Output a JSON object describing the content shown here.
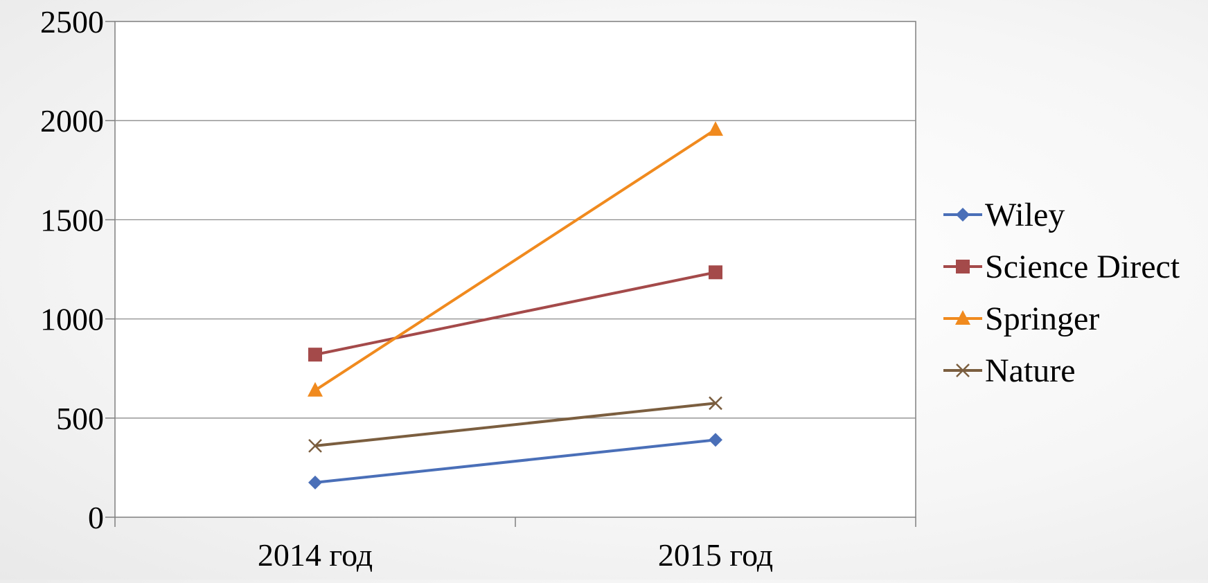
{
  "chart_data": {
    "type": "line",
    "title": "",
    "xlabel": "",
    "ylabel": "",
    "categories": [
      "2014 год",
      "2015 год"
    ],
    "ylim": [
      0,
      2500
    ],
    "y_ticks": [
      0,
      500,
      1000,
      1500,
      2000,
      2500
    ],
    "grid": true,
    "legend_position": "right",
    "series": [
      {
        "name": "Wiley",
        "values": [
          175,
          390
        ],
        "color": "#4a6fb8",
        "marker": "diamond"
      },
      {
        "name": "Science Direct",
        "values": [
          820,
          1235
        ],
        "color": "#a44a4a",
        "marker": "square"
      },
      {
        "name": "Springer",
        "values": [
          640,
          1955
        ],
        "color": "#f08a1e",
        "marker": "triangle"
      },
      {
        "name": "Nature",
        "values": [
          360,
          575
        ],
        "color": "#7b5e3f",
        "marker": "x"
      }
    ]
  }
}
